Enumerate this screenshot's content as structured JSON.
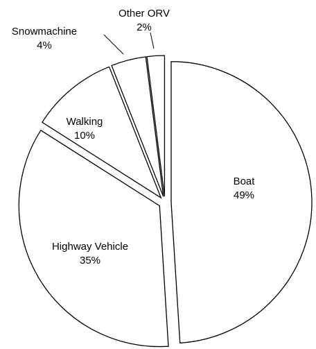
{
  "chart_data": {
    "type": "pie",
    "categories": [
      "Boat",
      "Highway Vehicle",
      "Walking",
      "Snowmachine",
      "Other ORV"
    ],
    "values": [
      49,
      35,
      10,
      4,
      2
    ],
    "value_labels": [
      "49%",
      "35%",
      "10%",
      "4%",
      "2%"
    ],
    "color": "#ffffff"
  }
}
